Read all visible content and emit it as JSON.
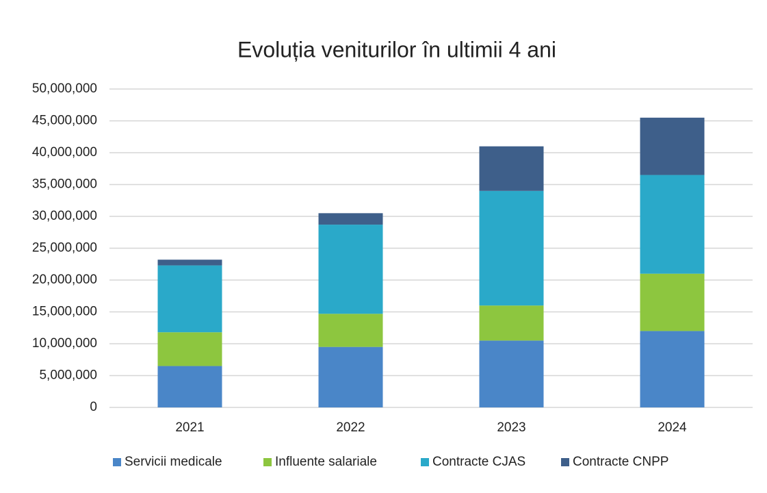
{
  "chart_data": {
    "type": "stacked_bar",
    "title": "Evoluția veniturilor în ultimii 4 ani",
    "categories": [
      "2021",
      "2022",
      "2023",
      "2024"
    ],
    "series": [
      {
        "name": "Servicii medicale",
        "color": "#4a86c8",
        "values": [
          6500000,
          9500000,
          10500000,
          12000000
        ]
      },
      {
        "name": "Influente salariale",
        "color": "#8dc63f",
        "values": [
          5300000,
          5200000,
          5500000,
          9000000
        ]
      },
      {
        "name": "Contracte CJAS",
        "color": "#2aa9c9",
        "values": [
          10500000,
          14000000,
          18000000,
          15500000
        ]
      },
      {
        "name": "Contracte CNPP",
        "color": "#3e5f8a",
        "values": [
          900000,
          1800000,
          7000000,
          9000000
        ]
      }
    ],
    "ylim": [
      0,
      50000000
    ],
    "yticks": [
      {
        "value": 0,
        "label": "0"
      },
      {
        "value": 5000000,
        "label": "5,000,000"
      },
      {
        "value": 10000000,
        "label": "10,000,000"
      },
      {
        "value": 15000000,
        "label": "15,000,000"
      },
      {
        "value": 20000000,
        "label": "20,000,000"
      },
      {
        "value": 25000000,
        "label": "25,000,000"
      },
      {
        "value": 30000000,
        "label": "30,000,000"
      },
      {
        "value": 35000000,
        "label": "35,000,000"
      },
      {
        "value": 40000000,
        "label": "40,000,000"
      },
      {
        "value": 45000000,
        "label": "45,000,000"
      },
      {
        "value": 50000000,
        "label": "50,000,000"
      }
    ],
    "grid": true,
    "legend": "bottom"
  }
}
